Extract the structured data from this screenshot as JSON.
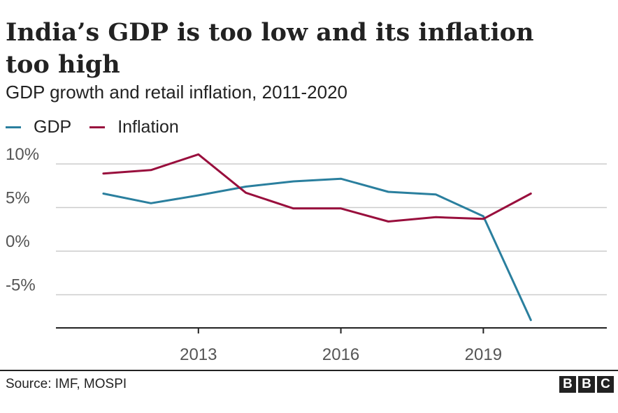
{
  "chart_data": {
    "type": "line",
    "title": "India’s GDP is too low and its inflation too high",
    "subtitle": "GDP growth and retail inflation, 2011-2020",
    "x": [
      2011,
      2012,
      2013,
      2014,
      2015,
      2016,
      2017,
      2018,
      2019,
      2020
    ],
    "series": [
      {
        "name": "GDP",
        "color": "#2a7f9e",
        "values": [
          6.6,
          5.5,
          6.4,
          7.4,
          8.0,
          8.3,
          6.8,
          6.5,
          4.0,
          -7.9
        ]
      },
      {
        "name": "Inflation",
        "color": "#990f3d",
        "values": [
          8.9,
          9.3,
          11.1,
          6.7,
          4.9,
          4.9,
          3.4,
          3.9,
          3.7,
          6.6
        ]
      }
    ],
    "x_ticks": [
      2013,
      2016,
      2019
    ],
    "x_tick_labels": [
      "2013",
      "2016",
      "2019"
    ],
    "y_ticks": [
      10,
      5,
      0,
      -5
    ],
    "y_tick_labels": [
      "10%",
      "5%",
      "0%",
      "-5%"
    ],
    "xlim": [
      2010,
      2021.6
    ],
    "ylim": [
      -8.8,
      12
    ],
    "grid": true,
    "legend_position": "top-left",
    "xlabel": "",
    "ylabel": ""
  },
  "footer": {
    "source": "Source: IMF, MOSPI",
    "logo": [
      "B",
      "B",
      "C"
    ]
  }
}
